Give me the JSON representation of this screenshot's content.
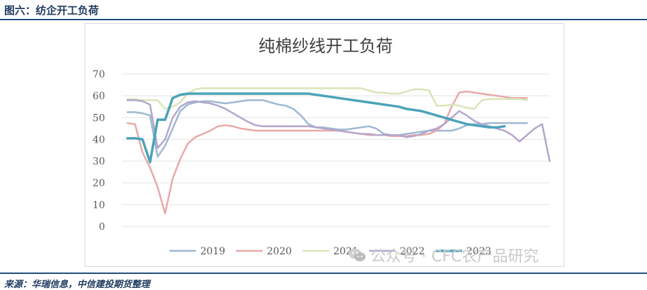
{
  "figure_title": "图六：纺企开工负荷",
  "source_text": "来源：华瑞信息，中信建投期货整理",
  "watermark_text": "公众号 · CFC农产品研究",
  "chart_data": {
    "type": "line",
    "title": "纯棉纱线开工负荷",
    "ylim": [
      0,
      70
    ],
    "yticks": [
      "70",
      "60",
      "50",
      "40",
      "30",
      "20",
      "10",
      "0"
    ],
    "grid": true,
    "legend_position": "bottom",
    "series": [
      {
        "name": "2019",
        "color": "#9db8d2",
        "values": [
          52.5,
          52.5,
          52,
          51,
          32,
          37,
          45,
          53,
          56,
          57,
          57.5,
          57.5,
          57,
          56.5,
          57,
          57.5,
          58,
          58,
          58,
          57,
          56,
          55.5,
          54,
          51,
          47,
          45.5,
          45.5,
          45,
          44.5,
          44.5,
          45,
          45.5,
          46,
          45,
          42.5,
          42,
          42,
          42.5,
          43,
          43.5,
          44,
          44,
          44,
          44,
          45,
          46.5,
          47,
          47,
          47.5,
          47.5,
          47.5,
          47.5,
          47.5,
          47.5
        ]
      },
      {
        "name": "2020",
        "color": "#e8a9a9",
        "values": [
          47.5,
          47,
          34,
          27,
          18,
          6,
          22,
          31,
          38,
          41,
          42.5,
          44,
          46,
          46.5,
          46,
          45,
          44.5,
          44,
          44,
          44,
          44,
          44,
          44,
          44,
          44,
          44,
          44,
          44,
          44,
          43.5,
          43,
          42.5,
          42,
          42,
          42,
          41.5,
          41.5,
          41.5,
          42,
          42,
          42.5,
          44,
          47,
          55,
          61.5,
          62,
          61.5,
          61,
          60.5,
          60,
          59.5,
          59,
          59,
          59
        ]
      },
      {
        "name": "2021",
        "color": "#d8e5b8",
        "values": [
          58.5,
          58.5,
          58,
          58,
          58,
          54,
          55,
          57,
          61,
          63,
          63.5,
          63.5,
          63.5,
          63.5,
          63.5,
          63.5,
          63.5,
          63.5,
          63.5,
          63.5,
          63.5,
          63.5,
          63.5,
          63.5,
          63.5,
          63.5,
          63.5,
          63.5,
          63.5,
          63.5,
          63.5,
          63.5,
          62.5,
          61.5,
          61.5,
          61,
          61,
          62,
          63,
          63,
          62.5,
          55.5,
          55.5,
          56,
          55.5,
          54.5,
          54,
          58,
          58.5,
          58.5,
          58.5,
          58.5,
          58.5,
          58
        ]
      },
      {
        "name": "2022",
        "color": "#b3a6cc",
        "values": [
          58,
          58,
          57.5,
          56,
          36,
          40,
          50,
          55,
          57,
          57.5,
          57,
          56.5,
          55.5,
          54,
          52,
          50,
          48,
          46.5,
          46,
          46,
          46,
          46,
          46,
          46,
          46,
          45.5,
          45,
          44.5,
          44,
          43.5,
          43,
          42.5,
          42.5,
          42,
          42,
          42,
          42,
          41,
          41.5,
          42.5,
          44,
          45,
          47,
          50,
          53,
          51,
          48.5,
          47,
          46,
          45,
          44,
          42,
          39,
          42,
          45,
          47,
          30
        ]
      },
      {
        "name": "2023",
        "color": "#4aa3b8",
        "values": [
          40.5,
          40.5,
          40,
          29.5,
          49,
          49,
          59,
          60.5,
          61,
          61,
          61,
          61,
          61,
          61,
          61,
          61,
          61,
          61,
          61,
          61,
          61,
          61,
          61,
          61,
          61,
          60.5,
          60,
          59.5,
          59,
          58.5,
          58,
          57.5,
          57,
          56.5,
          56,
          55.5,
          55,
          54,
          53.5,
          53,
          52,
          51,
          50,
          49,
          48,
          47,
          46.5,
          46,
          45.5,
          45.5,
          46
        ]
      }
    ]
  }
}
